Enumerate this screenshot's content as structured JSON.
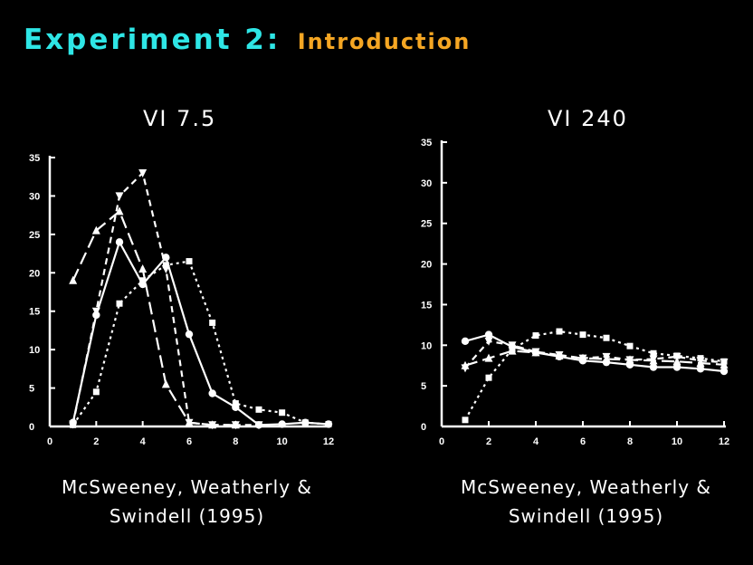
{
  "slide": {
    "title": "Experiment 2:",
    "subtitle": "Introduction",
    "title_color": "#2ee6e6",
    "subtitle_color": "#f5a623"
  },
  "chart_data": [
    {
      "type": "line",
      "title": "VI 7.5",
      "caption_line1": "McSweeney, Weatherly &",
      "caption_line2": "Swindell (1995)",
      "xlabel": "",
      "ylabel": "",
      "xlim": [
        0,
        12
      ],
      "ylim": [
        0,
        35
      ],
      "xticks": [
        0,
        2,
        4,
        6,
        8,
        10,
        12
      ],
      "yticks": [
        0,
        5,
        10,
        15,
        20,
        25,
        30,
        35
      ],
      "ytick_labels": [
        "0",
        "5",
        "10",
        "15",
        "20",
        "25",
        "30",
        "35"
      ],
      "grid": false,
      "series": [
        {
          "style": "solid",
          "marker": "circle",
          "x": [
            1,
            2,
            3,
            4,
            5,
            6,
            7,
            8,
            9,
            10,
            11,
            12
          ],
          "y": [
            0.5,
            14.5,
            24,
            18.5,
            22,
            12,
            4.3,
            2.5,
            0.2,
            0.3,
            0.5,
            0.3
          ]
        },
        {
          "style": "longdash",
          "marker": "triangle",
          "x": [
            1,
            2,
            3,
            4,
            5,
            6,
            7,
            8
          ],
          "y": [
            19,
            25.5,
            28,
            20.5,
            5.5,
            0.5,
            0.2,
            0.2
          ]
        },
        {
          "style": "dash",
          "marker": "triangle-down",
          "x": [
            1,
            2,
            3,
            4,
            5,
            6,
            7,
            8,
            9
          ],
          "y": [
            0.3,
            15,
            30,
            33,
            20.5,
            0.5,
            0.2,
            0.2,
            0.2
          ]
        },
        {
          "style": "dot",
          "marker": "square",
          "x": [
            1,
            2,
            3,
            4,
            5,
            6,
            7,
            8,
            9,
            10,
            11,
            12
          ],
          "y": [
            0.2,
            4.5,
            16,
            19,
            21,
            21.5,
            13.5,
            3,
            2.2,
            1.8,
            0.5,
            0.3
          ]
        }
      ]
    },
    {
      "type": "line",
      "title": "VI 240",
      "caption_line1": "McSweeney, Weatherly &",
      "caption_line2": "Swindell (1995)",
      "xlabel": "",
      "ylabel": "",
      "xlim": [
        0,
        12
      ],
      "ylim": [
        0,
        35
      ],
      "xticks": [
        0,
        2,
        4,
        6,
        8,
        10,
        12
      ],
      "yticks": [
        0,
        5,
        10,
        15,
        20,
        25,
        30,
        35
      ],
      "ytick_labels": [
        "0",
        "5",
        "10",
        "15",
        "20",
        "25",
        "30",
        "35"
      ],
      "grid": false,
      "series": [
        {
          "style": "solid",
          "marker": "circle",
          "x": [
            1,
            2,
            3,
            4,
            5,
            6,
            7,
            8,
            9,
            10,
            11,
            12
          ],
          "y": [
            10.5,
            11.3,
            9.8,
            9.1,
            8.6,
            8.1,
            7.9,
            7.6,
            7.3,
            7.3,
            7.1,
            6.8
          ]
        },
        {
          "style": "longdash",
          "marker": "triangle",
          "x": [
            1,
            2,
            3,
            4,
            5,
            6,
            7,
            8,
            9,
            10,
            11,
            12
          ],
          "y": [
            7.5,
            8.4,
            9.3,
            9.1,
            8.7,
            8.4,
            8.3,
            8.2,
            8.1,
            8.0,
            7.8,
            7.6
          ]
        },
        {
          "style": "dash",
          "marker": "triangle-down",
          "x": [
            1,
            2,
            3,
            4,
            5,
            6,
            7,
            8,
            9,
            10,
            11,
            12
          ],
          "y": [
            7.2,
            10.5,
            10,
            9.2,
            8.8,
            8.4,
            8.6,
            8.2,
            8.3,
            8.6,
            8.1,
            7.9
          ]
        },
        {
          "style": "dot",
          "marker": "square",
          "x": [
            1,
            2,
            3,
            4,
            5,
            6,
            7,
            8,
            9,
            10,
            11,
            12
          ],
          "y": [
            0.8,
            6,
            9.5,
            11.2,
            11.7,
            11.3,
            10.9,
            9.9,
            9.0,
            8.7,
            8.4,
            8.0
          ]
        }
      ]
    }
  ]
}
